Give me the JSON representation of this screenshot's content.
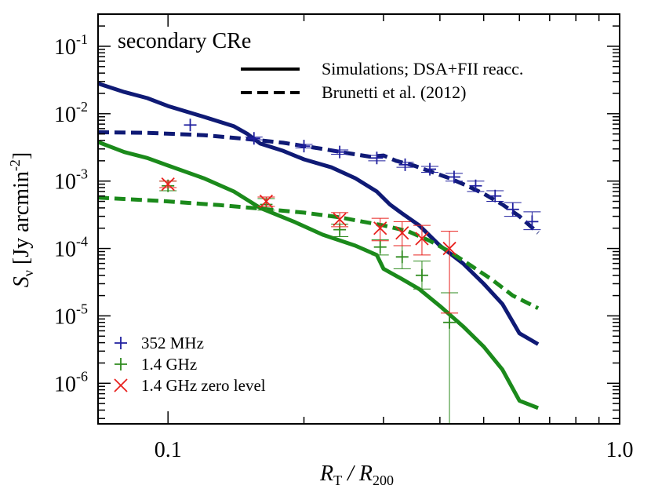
{
  "chart_data": {
    "type": "line",
    "xlabel": {
      "main": "R",
      "sub1": "T",
      "mid": " / R",
      "sub2": "200"
    },
    "ylabel": {
      "main": "S",
      "sub": "ν",
      "unit_pre": " [Jy arcmin",
      "unit_exp": "-2",
      "unit_post": "]"
    },
    "xscale": "log",
    "yscale": "log",
    "xlim": [
      0.07,
      1.0
    ],
    "ylim": [
      2.5e-07,
      0.3
    ],
    "x_ticks": [
      {
        "value": 0.1,
        "label": "0.1"
      },
      {
        "value": 1.0,
        "label": "1.0"
      }
    ],
    "y_ticks": [
      {
        "value": 0.1,
        "exp": "-1"
      },
      {
        "value": 0.01,
        "exp": "-2"
      },
      {
        "value": 0.001,
        "exp": "-3"
      },
      {
        "value": 0.0001,
        "exp": "-4"
      },
      {
        "value": 1e-05,
        "exp": "-5"
      },
      {
        "value": 1e-06,
        "exp": "-6"
      }
    ],
    "annotation": "secondary CRe",
    "line_legend": [
      {
        "label": "Simulations; DSA+FII reacc.",
        "style": "solid"
      },
      {
        "label": "Brunetti et al. (2012)",
        "style": "dashed"
      }
    ],
    "marker_legend": [
      {
        "label": "352 MHz",
        "marker": "plus",
        "color": "#1f1f9e"
      },
      {
        "label": "1.4 GHz",
        "marker": "plus",
        "color": "#2e8b1e"
      },
      {
        "label": "1.4 GHz zero level",
        "marker": "cross",
        "color": "#e8211e"
      }
    ],
    "colors": {
      "blue": "#0f1a75",
      "green": "#1b8a1b",
      "blue_marker": "#1f1f9e",
      "green_marker": "#2e8b1e",
      "red": "#e8211e"
    },
    "series": [
      {
        "color": "blue",
        "style": "solid",
        "points": [
          [
            0.07,
            0.028
          ],
          [
            0.08,
            0.021
          ],
          [
            0.09,
            0.017
          ],
          [
            0.1,
            0.013
          ],
          [
            0.12,
            0.009
          ],
          [
            0.14,
            0.0065
          ],
          [
            0.15,
            0.005
          ],
          [
            0.16,
            0.0036
          ],
          [
            0.18,
            0.0028
          ],
          [
            0.2,
            0.0021
          ],
          [
            0.23,
            0.0016
          ],
          [
            0.26,
            0.0011
          ],
          [
            0.29,
            0.0007
          ],
          [
            0.31,
            0.00045
          ],
          [
            0.33,
            0.00033
          ],
          [
            0.36,
            0.00022
          ],
          [
            0.4,
            0.00011
          ],
          [
            0.45,
            6e-05
          ],
          [
            0.5,
            3e-05
          ],
          [
            0.55,
            1.5e-05
          ],
          [
            0.6,
            5.5e-06
          ],
          [
            0.66,
            3.8e-06
          ]
        ]
      },
      {
        "color": "blue",
        "style": "dashed",
        "points": [
          [
            0.07,
            0.0053
          ],
          [
            0.09,
            0.0052
          ],
          [
            0.12,
            0.0048
          ],
          [
            0.15,
            0.0042
          ],
          [
            0.18,
            0.0037
          ],
          [
            0.22,
            0.003
          ],
          [
            0.25,
            0.0026
          ],
          [
            0.28,
            0.0023
          ],
          [
            0.3,
            0.0024
          ],
          [
            0.32,
            0.002
          ],
          [
            0.35,
            0.0017
          ],
          [
            0.38,
            0.0014
          ],
          [
            0.42,
            0.0011
          ],
          [
            0.46,
            0.00085
          ],
          [
            0.5,
            0.00065
          ],
          [
            0.55,
            0.00045
          ],
          [
            0.6,
            0.0003
          ],
          [
            0.66,
            0.00017
          ]
        ]
      },
      {
        "color": "green",
        "style": "solid",
        "points": [
          [
            0.07,
            0.0038
          ],
          [
            0.08,
            0.0027
          ],
          [
            0.09,
            0.0022
          ],
          [
            0.1,
            0.0017
          ],
          [
            0.12,
            0.0011
          ],
          [
            0.14,
            0.0007
          ],
          [
            0.16,
            0.0004
          ],
          [
            0.19,
            0.00025
          ],
          [
            0.22,
            0.00016
          ],
          [
            0.26,
            0.00011
          ],
          [
            0.29,
            8e-05
          ],
          [
            0.3,
            5e-05
          ],
          [
            0.33,
            3.5e-05
          ],
          [
            0.36,
            2.5e-05
          ],
          [
            0.4,
            1.4e-05
          ],
          [
            0.45,
            7e-06
          ],
          [
            0.5,
            3.5e-06
          ],
          [
            0.55,
            1.6e-06
          ],
          [
            0.6,
            5.5e-07
          ],
          [
            0.66,
            4.3e-07
          ]
        ]
      },
      {
        "color": "green",
        "style": "dashed",
        "points": [
          [
            0.07,
            0.00057
          ],
          [
            0.1,
            0.0005
          ],
          [
            0.13,
            0.00044
          ],
          [
            0.16,
            0.00039
          ],
          [
            0.2,
            0.00034
          ],
          [
            0.24,
            0.00029
          ],
          [
            0.27,
            0.00025
          ],
          [
            0.3,
            0.00022
          ],
          [
            0.34,
            0.00018
          ],
          [
            0.38,
            0.00013
          ],
          [
            0.42,
            9e-05
          ],
          [
            0.47,
            5.5e-05
          ],
          [
            0.52,
            3.5e-05
          ],
          [
            0.58,
            2e-05
          ],
          [
            0.66,
            1.3e-05
          ]
        ]
      }
    ],
    "points_352MHz": [
      {
        "x": 0.112,
        "y": 0.0068
      },
      {
        "x": 0.155,
        "y": 0.0043,
        "lo": 0.0041,
        "hi": 0.0045
      },
      {
        "x": 0.2,
        "y": 0.0033,
        "lo": 0.0031,
        "hi": 0.0035
      },
      {
        "x": 0.24,
        "y": 0.0027,
        "lo": 0.0025,
        "hi": 0.0029
      },
      {
        "x": 0.29,
        "y": 0.0022,
        "lo": 0.002,
        "hi": 0.0024
      },
      {
        "x": 0.335,
        "y": 0.00175,
        "lo": 0.0016,
        "hi": 0.0019
      },
      {
        "x": 0.38,
        "y": 0.0015,
        "lo": 0.00135,
        "hi": 0.00165
      },
      {
        "x": 0.43,
        "y": 0.00115,
        "lo": 0.001,
        "hi": 0.0013
      },
      {
        "x": 0.48,
        "y": 0.00085,
        "lo": 0.0007,
        "hi": 0.001
      },
      {
        "x": 0.53,
        "y": 0.0006,
        "lo": 0.0005,
        "hi": 0.00072
      },
      {
        "x": 0.58,
        "y": 0.00038,
        "lo": 0.0003,
        "hi": 0.00048
      },
      {
        "x": 0.64,
        "y": 0.00025,
        "lo": 0.00019,
        "hi": 0.00035
      }
    ],
    "points_1p4GHz": [
      {
        "x": 0.1,
        "y": 0.00085,
        "lo": 0.00072,
        "hi": 0.001
      },
      {
        "x": 0.165,
        "y": 0.00045,
        "lo": 0.00037,
        "hi": 0.00055
      },
      {
        "x": 0.24,
        "y": 0.00019,
        "lo": 0.00015,
        "hi": 0.00023
      },
      {
        "x": 0.295,
        "y": 0.000105,
        "lo": 8e-05,
        "hi": 0.000135
      },
      {
        "x": 0.33,
        "y": 7.5e-05,
        "lo": 5e-05,
        "hi": 0.00011
      },
      {
        "x": 0.365,
        "y": 4e-05,
        "lo": 2.5e-05,
        "hi": 6.5e-05
      },
      {
        "x": 0.42,
        "y": 8e-06,
        "lo": 2e-07,
        "hi": 2.2e-05
      }
    ],
    "points_zero_level": [
      {
        "x": 0.1,
        "y": 0.0009,
        "lo": 0.0008,
        "hi": 0.001
      },
      {
        "x": 0.165,
        "y": 0.0005,
        "lo": 0.00042,
        "hi": 0.00058
      },
      {
        "x": 0.24,
        "y": 0.00027,
        "lo": 0.00021,
        "hi": 0.00034
      },
      {
        "x": 0.295,
        "y": 0.0002,
        "lo": 0.00013,
        "hi": 0.00028
      },
      {
        "x": 0.33,
        "y": 0.00017,
        "lo": 0.00011,
        "hi": 0.00025
      },
      {
        "x": 0.365,
        "y": 0.00014,
        "lo": 8e-05,
        "hi": 0.00022
      },
      {
        "x": 0.42,
        "y": 0.0001,
        "lo": 1.1e-05,
        "hi": 0.00018
      }
    ]
  }
}
